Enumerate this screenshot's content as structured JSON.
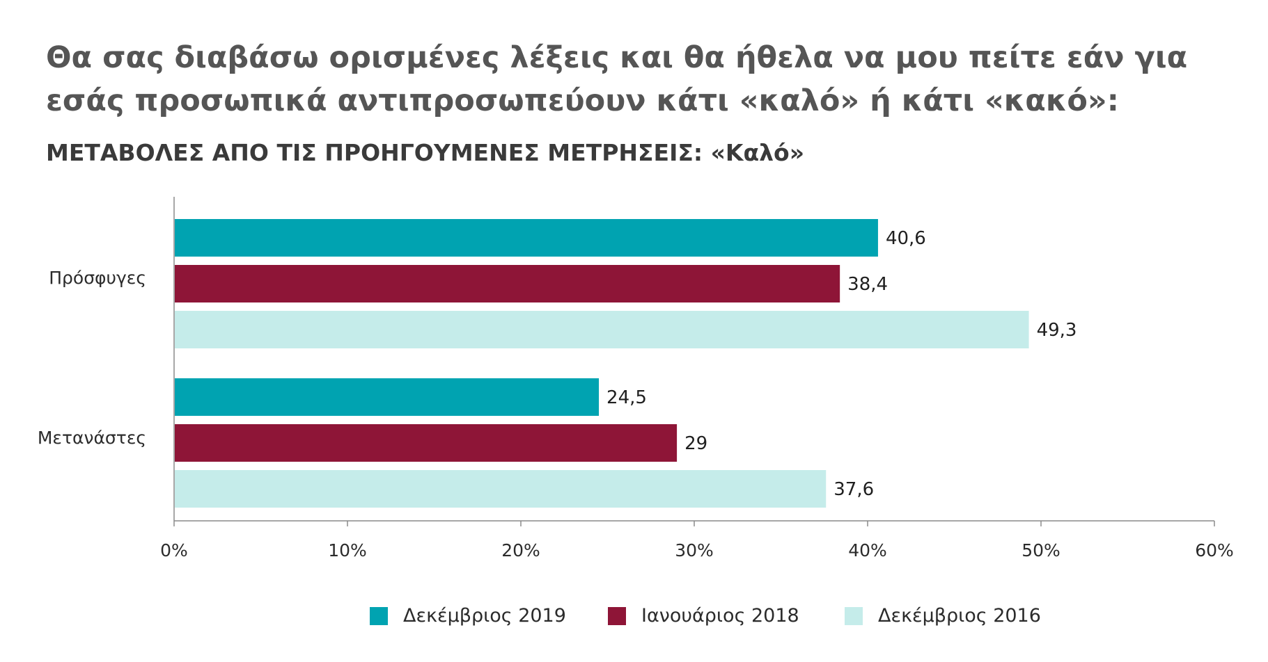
{
  "title_line1": "Θα σας διαβάσω ορισμένες λέξεις και θα ήθελα να μου πείτε εάν για",
  "title_line2": "εσάς προσωπικά αντιπροσωπεύουν κάτι «καλό» ή κάτι «κακό»:",
  "subtitle": "ΜΕΤΑΒΟΛΕΣ ΑΠΟ ΤΙΣ ΠΡΟΗΓΟΥΜΕΝΕΣ ΜΕΤΡΗΣΕΙΣ: «Καλό»",
  "chart_data": {
    "type": "bar",
    "orientation": "horizontal",
    "categories": [
      "Πρόσφυγες",
      "Μετανάστες"
    ],
    "series": [
      {
        "name": "Δεκέμβριος 2019",
        "color": "#00a3b1",
        "values": [
          40.6,
          24.5
        ],
        "labels": [
          "40,6",
          "24,5"
        ]
      },
      {
        "name": "Ιανουάριος 2018",
        "color": "#8e1537",
        "values": [
          38.4,
          29
        ],
        "labels": [
          "38,4",
          "29"
        ]
      },
      {
        "name": "Δεκέμβριος 2016",
        "color": "#c5ecea",
        "values": [
          49.3,
          37.6
        ],
        "labels": [
          "49,3",
          "37,6"
        ]
      }
    ],
    "xlim": [
      0,
      60
    ],
    "xticks": [
      0,
      10,
      20,
      30,
      40,
      50,
      60
    ],
    "xtick_labels": [
      "0%",
      "10%",
      "20%",
      "30%",
      "40%",
      "50%",
      "60%"
    ],
    "grid": false,
    "legend_position": "bottom"
  }
}
